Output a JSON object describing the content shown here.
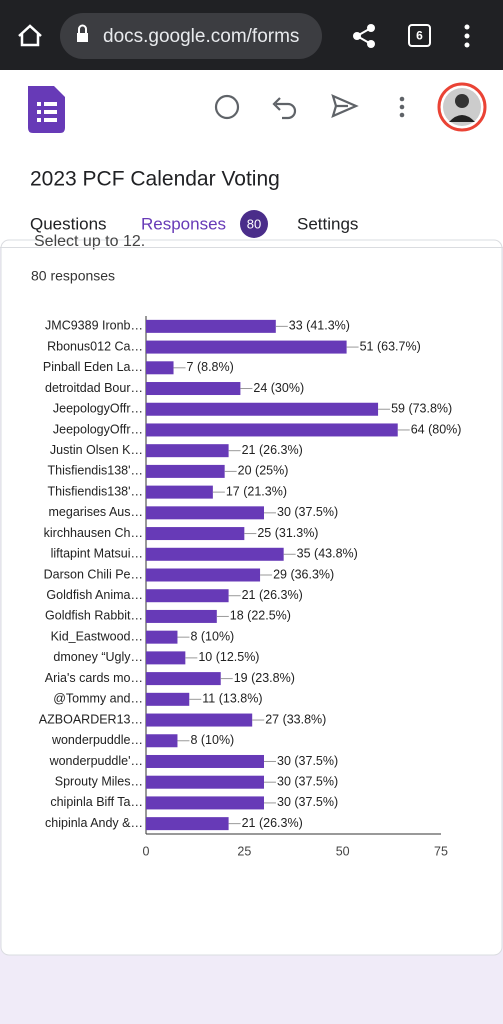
{
  "browser": {
    "url": "docs.google.com/forms",
    "tab_count": "6"
  },
  "form": {
    "title": "2023 PCF Calendar Voting",
    "tabs": [
      "Questions",
      "Responses",
      "Settings"
    ],
    "response_badge": "80",
    "question_hint": "Select up to 12.",
    "response_count": "80 responses"
  },
  "chart_data": {
    "type": "bar",
    "orientation": "horizontal",
    "color": "#673ab7",
    "categories": [
      "JMC9389 Ironb…",
      "Rbonus012 Ca…",
      "Pinball Eden La…",
      "detroitdad Bour…",
      "JeepologyOffr…",
      "JeepologyOffr…",
      "Justin Olsen K…",
      "Thisfiendis138'…",
      "Thisfiendis138'…",
      "megarises Aus…",
      "kirchhausen Ch…",
      "liftapint Matsui…",
      "Darson Chili Pe…",
      "Goldfish Anima…",
      "Goldfish Rabbit…",
      "Kid_Eastwood…",
      "dmoney “Ugly…",
      "Aria's cards mo…",
      "@Tommy and…",
      "AZBOARDER13…",
      "wonderpuddle…",
      "wonderpuddle'…",
      "Sprouty Miles…",
      "chipinla Biff Ta…",
      "chipinla Andy &…"
    ],
    "values": [
      33,
      51,
      7,
      24,
      59,
      64,
      21,
      20,
      17,
      30,
      25,
      35,
      29,
      21,
      18,
      8,
      10,
      19,
      11,
      27,
      8,
      30,
      30,
      30,
      21
    ],
    "value_labels": [
      "33 (41.3%)",
      "51 (63.7%)",
      "7 (8.8%)",
      "24 (30%)",
      "59 (73.8%)",
      "64 (80%)",
      "21 (26.3%)",
      "20 (25%)",
      "17 (21.3%)",
      "30 (37.5%)",
      "25 (31.3%)",
      "35 (43.8%)",
      "29 (36.3%)",
      "21 (26.3%)",
      "18 (22.5%)",
      "8 (10%)",
      "10 (12.5%)",
      "19 (23.8%)",
      "11 (13.8%)",
      "27 (33.8%)",
      "8 (10%)",
      "30 (37.5%)",
      "30 (37.5%)",
      "30 (37.5%)",
      "21 (26.3%)"
    ],
    "xlim": [
      0,
      75
    ],
    "xticks": [
      0,
      25,
      50,
      75
    ],
    "grid": false
  }
}
